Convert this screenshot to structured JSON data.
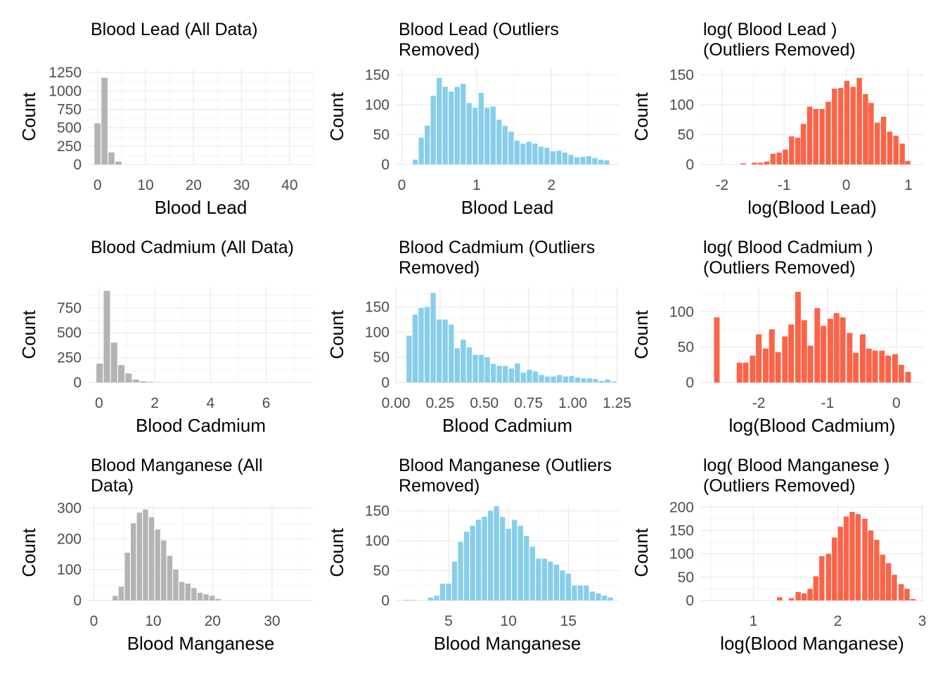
{
  "figure": {
    "background": "#ffffff"
  },
  "chart_data": [
    {
      "type": "bar",
      "title": [
        "Blood Lead (All Data)"
      ],
      "xlabel": "Blood Lead",
      "ylabel": "Count",
      "color": "#b3b3b3",
      "grid": true,
      "xlim": [
        -2,
        45
      ],
      "ylim": [
        0,
        1300
      ],
      "xticks": [
        0,
        10,
        20,
        30,
        40
      ],
      "xtick_labels": [
        "0",
        "10",
        "20",
        "30",
        "40"
      ],
      "yticks": [
        0,
        250,
        500,
        750,
        1000,
        1250
      ],
      "ytick_labels": [
        "0",
        "250",
        "500",
        "750",
        "1000",
        "1250"
      ],
      "bin_width": 1.45,
      "x": [
        0,
        1.45,
        2.9,
        4.35
      ],
      "values": [
        560,
        1180,
        165,
        40
      ]
    },
    {
      "type": "bar",
      "title": [
        "Blood Lead (Outliers",
        "Removed)"
      ],
      "xlabel": "Blood Lead",
      "ylabel": "Count",
      "color": "#87ceeb",
      "grid": true,
      "xlim": [
        -0.08,
        2.9
      ],
      "ylim": [
        0,
        160
      ],
      "xticks": [
        0,
        1,
        2
      ],
      "xtick_labels": [
        "0",
        "1",
        "2"
      ],
      "yticks": [
        0,
        50,
        100,
        150
      ],
      "ytick_labels": [
        "0",
        "50",
        "100",
        "150"
      ],
      "bin_width": 0.08,
      "x": [
        0.18,
        0.26,
        0.34,
        0.42,
        0.5,
        0.58,
        0.66,
        0.74,
        0.82,
        0.9,
        0.98,
        1.06,
        1.14,
        1.22,
        1.3,
        1.38,
        1.46,
        1.54,
        1.62,
        1.7,
        1.78,
        1.86,
        1.94,
        2.02,
        2.1,
        2.18,
        2.26,
        2.34,
        2.42,
        2.5,
        2.58,
        2.66,
        2.74
      ],
      "values": [
        8,
        45,
        65,
        115,
        145,
        130,
        122,
        130,
        135,
        103,
        95,
        120,
        95,
        97,
        75,
        65,
        55,
        40,
        35,
        38,
        35,
        30,
        28,
        22,
        23,
        20,
        16,
        12,
        13,
        14,
        11,
        8,
        7
      ]
    },
    {
      "type": "bar",
      "title": [
        "log( Blood Lead )",
        "(Outliers Removed)"
      ],
      "xlabel": "log(Blood Lead)",
      "ylabel": "Count",
      "color": "#fa6448",
      "grid": true,
      "xlim": [
        -2.35,
        1.25
      ],
      "ylim": [
        0,
        160
      ],
      "xticks": [
        -2,
        -1,
        0,
        1
      ],
      "xtick_labels": [
        "-2",
        "-1",
        "0",
        "1"
      ],
      "yticks": [
        0,
        50,
        100,
        150
      ],
      "ytick_labels": [
        "0",
        "50",
        "100",
        "150"
      ],
      "bin_width": 0.098,
      "x": [
        -1.66,
        -1.48,
        -1.38,
        -1.28,
        -1.18,
        -1.08,
        -0.98,
        -0.88,
        -0.78,
        -0.69,
        -0.59,
        -0.49,
        -0.39,
        -0.29,
        -0.19,
        -0.09,
        0.01,
        0.11,
        0.21,
        0.31,
        0.4,
        0.5,
        0.6,
        0.7,
        0.8,
        0.9,
        0.99
      ],
      "values": [
        2,
        3,
        3,
        5,
        18,
        20,
        25,
        47,
        45,
        68,
        97,
        93,
        93,
        105,
        127,
        128,
        140,
        130,
        145,
        118,
        103,
        70,
        80,
        55,
        48,
        35,
        6
      ]
    },
    {
      "type": "bar",
      "title": [
        "Blood Cadmium (All Data)"
      ],
      "xlabel": "Blood Cadmium",
      "ylabel": "Count",
      "color": "#b3b3b3",
      "grid": true,
      "xlim": [
        -0.4,
        7.7
      ],
      "ylim": [
        0,
        960
      ],
      "xticks": [
        0,
        2,
        4,
        6
      ],
      "xtick_labels": [
        "0",
        "2",
        "4",
        "6"
      ],
      "yticks": [
        0,
        250,
        500,
        750
      ],
      "ytick_labels": [
        "0",
        "250",
        "500",
        "750"
      ],
      "bin_width": 0.26,
      "x": [
        0.02,
        0.28,
        0.54,
        0.8,
        1.06,
        1.32,
        1.58,
        1.84
      ],
      "values": [
        190,
        920,
        400,
        175,
        90,
        30,
        12,
        6
      ]
    },
    {
      "type": "bar",
      "title": [
        "Blood Cadmium (Outliers",
        "Removed)"
      ],
      "xlabel": "Blood Cadmium",
      "ylabel": "Count",
      "color": "#87ceeb",
      "grid": true,
      "xlim": [
        0.0,
        1.26
      ],
      "ylim": [
        0,
        190
      ],
      "xticks": [
        0.0,
        0.25,
        0.5,
        0.75,
        1.0,
        1.25
      ],
      "xtick_labels": [
        "0.00",
        "0.25",
        "0.50",
        "0.75",
        "1.00",
        "1.25"
      ],
      "yticks": [
        0,
        50,
        100,
        150
      ],
      "ytick_labels": [
        "0",
        "50",
        "100",
        "150"
      ],
      "bin_width": 0.034,
      "x": [
        0.075,
        0.109,
        0.143,
        0.177,
        0.211,
        0.245,
        0.279,
        0.313,
        0.347,
        0.381,
        0.415,
        0.449,
        0.483,
        0.517,
        0.551,
        0.585,
        0.619,
        0.653,
        0.687,
        0.721,
        0.755,
        0.789,
        0.823,
        0.857,
        0.891,
        0.925,
        0.959,
        0.993,
        1.027,
        1.061,
        1.095,
        1.129,
        1.163,
        1.197,
        1.231
      ],
      "values": [
        93,
        135,
        148,
        150,
        178,
        125,
        125,
        115,
        68,
        85,
        70,
        55,
        55,
        50,
        37,
        33,
        33,
        28,
        38,
        20,
        25,
        22,
        15,
        12,
        12,
        15,
        12,
        13,
        10,
        8,
        8,
        7,
        3,
        6,
        2
      ]
    },
    {
      "type": "bar",
      "title": [
        "log( Blood Cadmium )",
        "(Outliers Removed)"
      ],
      "xlabel": "log(Blood Cadmium)",
      "ylabel": "Count",
      "color": "#fa6448",
      "grid": true,
      "xlim": [
        -2.85,
        0.4
      ],
      "ylim": [
        0,
        135
      ],
      "xticks": [
        -2,
        -1,
        0
      ],
      "xtick_labels": [
        "-2",
        "-1",
        "0"
      ],
      "yticks": [
        0,
        50,
        100
      ],
      "ytick_labels": [
        "0",
        "50",
        "100"
      ],
      "bin_width": 0.094,
      "x": [
        -2.61,
        -2.28,
        -2.19,
        -2.09,
        -2.0,
        -1.9,
        -1.81,
        -1.72,
        -1.62,
        -1.53,
        -1.43,
        -1.34,
        -1.25,
        -1.15,
        -1.06,
        -0.96,
        -0.87,
        -0.78,
        -0.68,
        -0.59,
        -0.49,
        -0.4,
        -0.31,
        -0.21,
        -0.12,
        -0.02,
        0.07,
        0.17
      ],
      "values": [
        92,
        28,
        28,
        38,
        68,
        48,
        75,
        43,
        65,
        82,
        128,
        88,
        52,
        105,
        80,
        90,
        98,
        92,
        70,
        42,
        68,
        48,
        45,
        45,
        38,
        40,
        25,
        15
      ]
    },
    {
      "type": "bar",
      "title": [
        "Blood Manganese (All",
        "Data)"
      ],
      "xlabel": "Blood Manganese",
      "ylabel": "Count",
      "color": "#b3b3b3",
      "grid": true,
      "xlim": [
        -1,
        37
      ],
      "ylim": [
        0,
        310
      ],
      "xticks": [
        0,
        10,
        20,
        30
      ],
      "xtick_labels": [
        "0",
        "10",
        "20",
        "30"
      ],
      "yticks": [
        0,
        100,
        200,
        300
      ],
      "ytick_labels": [
        "0",
        "100",
        "200",
        "300"
      ],
      "bin_width": 1.02,
      "x": [
        3.6,
        4.62,
        5.64,
        6.66,
        7.68,
        8.7,
        9.72,
        10.74,
        11.76,
        12.78,
        13.8,
        14.82,
        15.84,
        16.86,
        17.88,
        18.9,
        19.92,
        20.94
      ],
      "values": [
        15,
        45,
        155,
        250,
        285,
        295,
        270,
        230,
        195,
        145,
        100,
        60,
        55,
        40,
        25,
        20,
        15,
        5
      ]
    },
    {
      "type": "bar",
      "title": [
        "Blood Manganese (Outliers",
        "Removed)"
      ],
      "xlabel": "Blood Manganese",
      "ylabel": "Count",
      "color": "#87ceeb",
      "grid": true,
      "xlim": [
        0.6,
        19.2
      ],
      "ylim": [
        0,
        160
      ],
      "xticks": [
        5,
        10,
        15
      ],
      "xtick_labels": [
        "5",
        "10",
        "15"
      ],
      "yticks": [
        0,
        50,
        100,
        150
      ],
      "ytick_labels": [
        "0",
        "50",
        "100",
        "150"
      ],
      "bin_width": 0.5,
      "x": [
        1.5,
        2.0,
        3.5,
        4.0,
        4.5,
        5.0,
        5.5,
        6.0,
        6.5,
        7.0,
        7.5,
        8.0,
        8.5,
        9.0,
        9.5,
        10.0,
        10.5,
        11.0,
        11.5,
        12.0,
        12.5,
        13.0,
        13.5,
        14.0,
        14.5,
        15.0,
        15.5,
        16.0,
        16.5,
        17.0,
        17.5,
        18.0,
        18.5
      ],
      "values": [
        1,
        1,
        5,
        8,
        28,
        28,
        65,
        98,
        115,
        125,
        135,
        140,
        150,
        158,
        140,
        120,
        135,
        125,
        108,
        90,
        70,
        70,
        65,
        60,
        50,
        45,
        25,
        25,
        25,
        15,
        12,
        8,
        5
      ]
    },
    {
      "type": "bar",
      "title": [
        "log( Blood Manganese )",
        "(Outliers Removed)"
      ],
      "xlabel": "log(Blood Manganese)",
      "ylabel": "Count",
      "color": "#fa6448",
      "grid": true,
      "xlim": [
        0.37,
        3.02
      ],
      "ylim": [
        0,
        205
      ],
      "xticks": [
        1,
        2,
        3
      ],
      "xtick_labels": [
        "1",
        "2",
        "3"
      ],
      "yticks": [
        0,
        50,
        100,
        150,
        200
      ],
      "ytick_labels": [
        "0",
        "50",
        "100",
        "150",
        "200"
      ],
      "bin_width": 0.072,
      "x": [
        1.31,
        1.45,
        1.53,
        1.6,
        1.67,
        1.74,
        1.81,
        1.89,
        1.96,
        2.03,
        2.1,
        2.17,
        2.24,
        2.32,
        2.39,
        2.46,
        2.53,
        2.6,
        2.67,
        2.75,
        2.82,
        2.89
      ],
      "values": [
        7,
        5,
        18,
        15,
        25,
        52,
        95,
        100,
        135,
        158,
        180,
        190,
        185,
        175,
        150,
        130,
        98,
        80,
        55,
        35,
        25,
        3
      ]
    }
  ]
}
